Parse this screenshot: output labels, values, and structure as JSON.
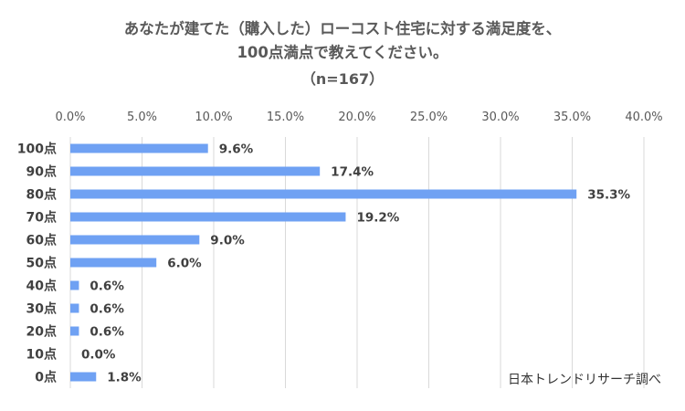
{
  "chart_data": {
    "type": "bar",
    "orientation": "horizontal",
    "title_lines": [
      "あなたが建てた（購入した）ローコスト住宅に対する満足度を、",
      "100点満点で教えてください。",
      "（n=167）"
    ],
    "categories": [
      "100点",
      "90点",
      "80点",
      "70点",
      "60点",
      "50点",
      "40点",
      "30点",
      "20点",
      "10点",
      "0点"
    ],
    "values": [
      9.6,
      17.4,
      35.3,
      19.2,
      9.0,
      6.0,
      0.6,
      0.6,
      0.6,
      0.0,
      1.8
    ],
    "value_labels": [
      "9.6%",
      "17.4%",
      "35.3%",
      "19.2%",
      "9.0%",
      "6.0%",
      "0.6%",
      "0.6%",
      "0.6%",
      "0.0%",
      "1.8%"
    ],
    "xlim": [
      0,
      40
    ],
    "x_ticks": [
      0,
      5,
      10,
      15,
      20,
      25,
      30,
      35,
      40
    ],
    "x_tick_labels": [
      "0.0%",
      "5.0%",
      "10.0%",
      "15.0%",
      "20.0%",
      "25.0%",
      "30.0%",
      "35.0%",
      "40.0%"
    ],
    "x_axis_position": "top",
    "grid": "vertical",
    "legend": "none",
    "bar_color": "#6FA1F3",
    "grid_color": "#D9D9D9",
    "source_note": "日本トレンドリサーチ調べ"
  }
}
